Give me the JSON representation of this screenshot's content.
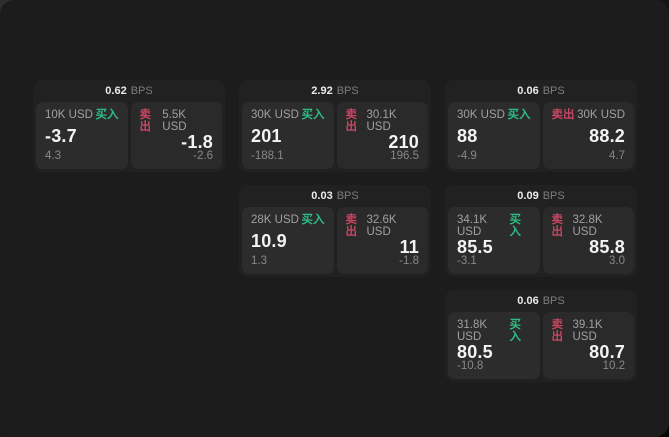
{
  "labels": {
    "bps_unit": "BPS",
    "buy": "买入",
    "sell": "卖出"
  },
  "colors": {
    "buy": "#2ebd85",
    "sell": "#c84662"
  },
  "cards": [
    {
      "bps": "0.62",
      "buy": {
        "amount": "10K USD",
        "price": "-3.7",
        "delta": "4.3"
      },
      "sell": {
        "amount": "5.5K USD",
        "price": "-1.8",
        "delta": "-2.6"
      }
    },
    {
      "bps": "2.92",
      "buy": {
        "amount": "30K USD",
        "price": "201",
        "delta": "-188.1"
      },
      "sell": {
        "amount": "30.1K USD",
        "price": "210",
        "delta": "196.5"
      }
    },
    {
      "bps": "0.06",
      "buy": {
        "amount": "30K USD",
        "price": "88",
        "delta": "-4.9"
      },
      "sell": {
        "amount": "30K USD",
        "price": "88.2",
        "delta": "4.7"
      }
    },
    {
      "bps": "0.03",
      "buy": {
        "amount": "28K USD",
        "price": "10.9",
        "delta": "1.3"
      },
      "sell": {
        "amount": "32.6K USD",
        "price": "11",
        "delta": "-1.8"
      }
    },
    {
      "bps": "0.09",
      "buy": {
        "amount": "34.1K USD",
        "price": "85.5",
        "delta": "-3.1"
      },
      "sell": {
        "amount": "32.8K USD",
        "price": "85.8",
        "delta": "3.0"
      }
    },
    {
      "bps": "0.06",
      "buy": {
        "amount": "31.8K USD",
        "price": "80.5",
        "delta": "-10.8"
      },
      "sell": {
        "amount": "39.1K USD",
        "price": "80.7",
        "delta": "10.2"
      }
    }
  ]
}
